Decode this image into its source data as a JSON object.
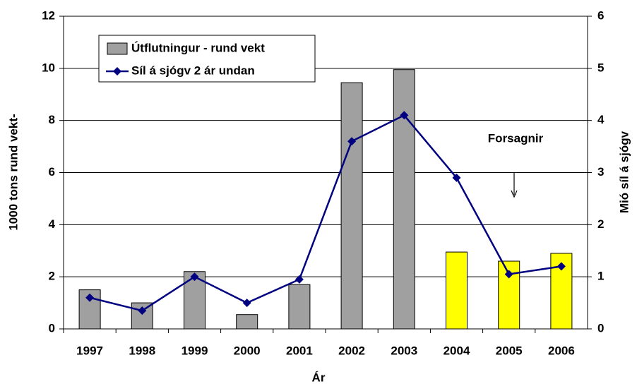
{
  "chart_data": {
    "type": "bar",
    "categories": [
      "1997",
      "1998",
      "1999",
      "2000",
      "2001",
      "2002",
      "2003",
      "2004",
      "2005",
      "2006"
    ],
    "series": [
      {
        "name": "Útflutningur - rund vekt",
        "type": "bar",
        "color": "#a0a0a0",
        "colors": [
          "#a0a0a0",
          "#a0a0a0",
          "#a0a0a0",
          "#a0a0a0",
          "#a0a0a0",
          "#a0a0a0",
          "#a0a0a0",
          "#ffff00",
          "#ffff00",
          "#ffff00"
        ],
        "values": [
          1.5,
          1.0,
          2.2,
          0.55,
          1.7,
          9.45,
          9.95,
          2.95,
          2.6,
          2.9
        ]
      },
      {
        "name": "Síl á sjógv 2 ár undan",
        "type": "line",
        "color": "#000080",
        "axis": "y2",
        "values": [
          0.6,
          0.35,
          1.0,
          0.5,
          0.95,
          3.6,
          4.1,
          2.9,
          1.05,
          1.2
        ]
      }
    ],
    "xlabel": "Ár",
    "ylabel": "1000 tons rund vekt-",
    "y2label": "Mió síl á sjógv",
    "annotation": "Forsagnir",
    "ylim": [
      0,
      12
    ],
    "yticks": [
      0,
      2,
      4,
      6,
      8,
      10,
      12
    ],
    "y2lim": [
      0,
      6
    ],
    "y2ticks": [
      0,
      1,
      2,
      3,
      4,
      5,
      6
    ],
    "grid": true,
    "legend": "upper left"
  }
}
